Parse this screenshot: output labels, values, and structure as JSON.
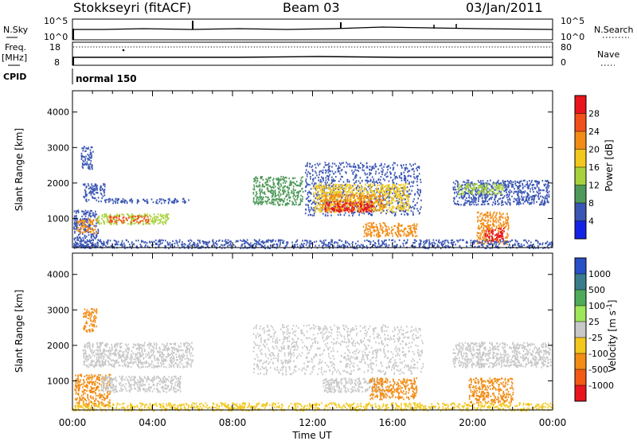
{
  "header": {
    "station": "Stokkseyri (fitACF)",
    "beam": "Beam 03",
    "date": "03/Jan/2011"
  },
  "top_panels": {
    "nsky_label": "N.Sky",
    "nsky_ticks": [
      "10^5",
      "10^0"
    ],
    "nsearch_label": "N.Search",
    "nsearch_ticks": [
      "10^5",
      "10^0"
    ],
    "freq_label": "Freq.",
    "freq_unit": "[MHz]",
    "freq_ticks": [
      "18",
      "8"
    ],
    "nave_label": "Nave",
    "nave_ticks": [
      "80",
      "0"
    ],
    "cpid_label": "CPID",
    "cpid_text": "normal 150"
  },
  "chart_data": [
    {
      "type": "heatmap",
      "name": "power",
      "ylabel": "Slant Range [km]",
      "xlabel": "Time UT",
      "xlim_hours": [
        0,
        24
      ],
      "ylim": [
        180,
        4600
      ],
      "x_ticks": [
        "00:00",
        "04:00",
        "08:00",
        "12:00",
        "16:00",
        "20:00",
        "00:00"
      ],
      "y_ticks": [
        1000,
        2000,
        3000,
        4000
      ],
      "colorbar": {
        "label": "Power [dB]",
        "ticks": [
          28,
          24,
          20,
          16,
          12,
          8,
          4
        ],
        "colors": [
          "#e8141e",
          "#f2501a",
          "#f28c14",
          "#f2c81e",
          "#a8d23c",
          "#4f9a5a",
          "#3a56b4",
          "#1422e6"
        ]
      },
      "regions": [
        {
          "t": [
            0.05,
            1.3
          ],
          "r": [
            200,
            1250
          ],
          "color": "#3a56b4"
        },
        {
          "t": [
            0.15,
            1.2
          ],
          "r": [
            600,
            1000
          ],
          "color": "#f28c14"
        },
        {
          "t": [
            1.2,
            4.8
          ],
          "r": [
            850,
            1150
          ],
          "color": "#a8d23c"
        },
        {
          "t": [
            1.8,
            3.8
          ],
          "r": [
            900,
            1100
          ],
          "color": "#f2501a"
        },
        {
          "t": [
            0.5,
            1.6
          ],
          "r": [
            1500,
            2000
          ],
          "color": "#3a56b4"
        },
        {
          "t": [
            0.4,
            1.0
          ],
          "r": [
            2400,
            3050
          ],
          "color": "#3a56b4"
        },
        {
          "t": [
            1.6,
            5.8
          ],
          "r": [
            1450,
            1580
          ],
          "color": "#3a56b4"
        },
        {
          "t": [
            9.0,
            11.5
          ],
          "r": [
            1400,
            2200
          ],
          "color": "#4f9a5a"
        },
        {
          "t": [
            11.6,
            17.4
          ],
          "r": [
            1100,
            2600
          ],
          "color": "#3a56b4"
        },
        {
          "t": [
            12.0,
            16.8
          ],
          "r": [
            1200,
            2000
          ],
          "color": "#f2c81e"
        },
        {
          "t": [
            12.4,
            15.6
          ],
          "r": [
            1250,
            1700
          ],
          "color": "#f28c14"
        },
        {
          "t": [
            12.6,
            15.0
          ],
          "r": [
            1200,
            1500
          ],
          "color": "#e8141e"
        },
        {
          "t": [
            14.5,
            17.2
          ],
          "r": [
            500,
            900
          ],
          "color": "#f28c14"
        },
        {
          "t": [
            19.0,
            23.8
          ],
          "r": [
            1400,
            2100
          ],
          "color": "#3a56b4"
        },
        {
          "t": [
            19.2,
            21.5
          ],
          "r": [
            1700,
            2000
          ],
          "color": "#a8d23c"
        },
        {
          "t": [
            20.2,
            21.8
          ],
          "r": [
            300,
            1200
          ],
          "color": "#f28c14"
        },
        {
          "t": [
            20.6,
            21.6
          ],
          "r": [
            350,
            750
          ],
          "color": "#e8141e"
        },
        {
          "t": [
            0.0,
            24.0
          ],
          "r": [
            180,
            420
          ],
          "color": "#3a56b4"
        }
      ]
    },
    {
      "type": "heatmap",
      "name": "velocity",
      "ylabel": "Slant Range [km]",
      "xlabel": "Time UT",
      "xlim_hours": [
        0,
        24
      ],
      "ylim": [
        180,
        4600
      ],
      "x_ticks": [
        "00:00",
        "04:00",
        "08:00",
        "12:00",
        "16:00",
        "20:00",
        "00:00"
      ],
      "y_ticks": [
        1000,
        2000,
        3000,
        4000
      ],
      "colorbar": {
        "label": "Velocity [m s",
        "unit_sup": "-1",
        "unit_close": "]",
        "ticks": [
          1000,
          500,
          100,
          25,
          -25,
          -100,
          -500,
          -1000
        ],
        "colors": [
          "#2a50c8",
          "#3b7c8c",
          "#4faa5a",
          "#9ee65a",
          "#c8c8c8",
          "#f2c81e",
          "#f28c14",
          "#f25a14",
          "#e8141e"
        ]
      },
      "regions": [
        {
          "t": [
            0.1,
            1.9
          ],
          "r": [
            300,
            1200
          ],
          "color": "#f28c14"
        },
        {
          "t": [
            0.5,
            1.2
          ],
          "r": [
            2400,
            3050
          ],
          "color": "#f28c14"
        },
        {
          "t": [
            1.4,
            5.4
          ],
          "r": [
            700,
            1150
          ],
          "color": "#c8c8c8"
        },
        {
          "t": [
            0.5,
            6.0
          ],
          "r": [
            1400,
            2100
          ],
          "color": "#c8c8c8"
        },
        {
          "t": [
            9.0,
            17.5
          ],
          "r": [
            1200,
            2600
          ],
          "color": "#c8c8c8"
        },
        {
          "t": [
            12.5,
            15.5
          ],
          "r": [
            700,
            1100
          ],
          "color": "#c8c8c8"
        },
        {
          "t": [
            14.8,
            17.2
          ],
          "r": [
            500,
            1100
          ],
          "color": "#f28c14"
        },
        {
          "t": [
            19.0,
            23.9
          ],
          "r": [
            1400,
            2100
          ],
          "color": "#c8c8c8"
        },
        {
          "t": [
            19.8,
            22.0
          ],
          "r": [
            400,
            1100
          ],
          "color": "#f28c14"
        },
        {
          "t": [
            0.0,
            24.0
          ],
          "r": [
            180,
            400
          ],
          "color": "#f2c81e"
        }
      ]
    }
  ]
}
